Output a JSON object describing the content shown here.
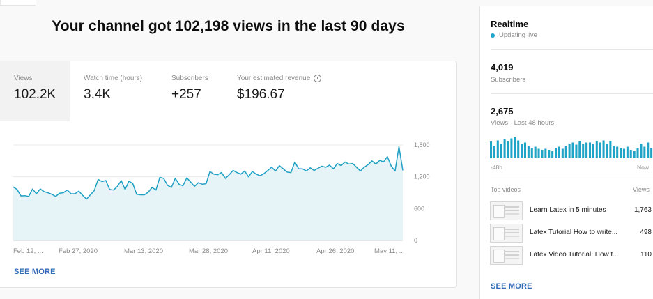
{
  "headline": "Your channel got 102,198 views in the last 90 days",
  "metrics": [
    {
      "label": "Views",
      "value": "102.2K"
    },
    {
      "label": "Watch time (hours)",
      "value": "3.4K"
    },
    {
      "label": "Subscribers",
      "value": "+257"
    },
    {
      "label": "Your estimated revenue",
      "value": "$196.67"
    }
  ],
  "main_see_more": "SEE MORE",
  "chart_data": {
    "type": "area",
    "x_tick_labels": [
      "Feb 12, ...",
      "Feb 27, 2020",
      "Mar 13, 2020",
      "Mar 28, 2020",
      "Apr 11, 2020",
      "Apr 26, 2020",
      "May 11, ..."
    ],
    "y_tick_labels": [
      "1,800",
      "1,200",
      "600",
      "0"
    ],
    "ylim": [
      0,
      1800
    ],
    "grid": true,
    "series": [
      {
        "values": [
          1010,
          960,
          840,
          845,
          830,
          970,
          880,
          970,
          920,
          900,
          870,
          830,
          890,
          900,
          950,
          880,
          880,
          930,
          850,
          780,
          860,
          940,
          1150,
          1110,
          1130,
          960,
          950,
          1020,
          1130,
          960,
          1120,
          1070,
          870,
          860,
          860,
          910,
          1000,
          950,
          1190,
          1170,
          1040,
          1000,
          1170,
          1060,
          1030,
          1180,
          1100,
          1020,
          1090,
          1060,
          1070,
          1300,
          1250,
          1240,
          1280,
          1170,
          1240,
          1320,
          1280,
          1250,
          1310,
          1200,
          1300,
          1250,
          1220,
          1260,
          1320,
          1380,
          1310,
          1410,
          1350,
          1290,
          1280,
          1480,
          1350,
          1350,
          1310,
          1370,
          1320,
          1360,
          1400,
          1380,
          1420,
          1350,
          1450,
          1410,
          1480,
          1440,
          1450,
          1380,
          1310,
          1380,
          1430,
          1500,
          1440,
          1510,
          1480,
          1580,
          1400,
          1310,
          1770,
          1320
        ]
      }
    ]
  },
  "realtime": {
    "title": "Realtime",
    "status": "Updating live",
    "subscribers_value": "4,019",
    "subscribers_label": "Subscribers",
    "views_value": "2,675",
    "views_label": "Views · Last 48 hours",
    "bars_left_label": "-48h",
    "bars_right_label": "Now",
    "bars": [
      0.8,
      0.6,
      0.85,
      0.7,
      0.9,
      0.8,
      0.95,
      1.0,
      0.85,
      0.7,
      0.75,
      0.6,
      0.5,
      0.55,
      0.45,
      0.4,
      0.45,
      0.4,
      0.35,
      0.5,
      0.55,
      0.45,
      0.6,
      0.7,
      0.75,
      0.65,
      0.8,
      0.7,
      0.75,
      0.75,
      0.7,
      0.8,
      0.75,
      0.85,
      0.7,
      0.8,
      0.6,
      0.55,
      0.5,
      0.45,
      0.55,
      0.4,
      0.35,
      0.5,
      0.7,
      0.55,
      0.75,
      0.5
    ],
    "bar_color": "#1fa3c6",
    "top_videos_label": "Top videos",
    "views_col_label": "Views",
    "videos": [
      {
        "title": "Learn Latex in 5 minutes",
        "views": "1,763"
      },
      {
        "title": "Latex Tutorial How to write...",
        "views": "498"
      },
      {
        "title": "Latex Video Tutorial: How t...",
        "views": "110"
      }
    ],
    "see_more": "SEE MORE"
  },
  "colors": {
    "line": "#1ea0c4",
    "area": "#e6f4f8",
    "link": "#2f6bb7"
  },
  "icons": [
    "clock-icon",
    "live-dot-icon"
  ]
}
